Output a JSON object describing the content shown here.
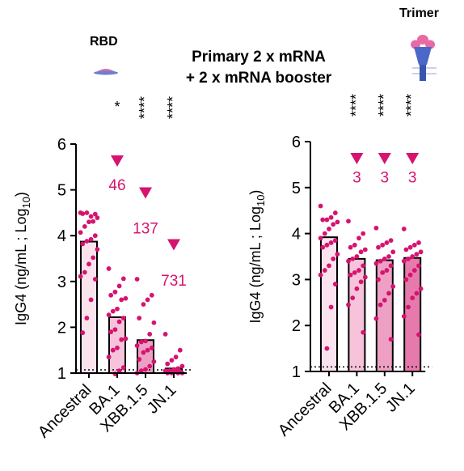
{
  "title_line1": "Primary 2 x mRNA",
  "title_line2": "+ 2 x mRNA booster",
  "icons": {
    "left": {
      "label": "RBD",
      "name": "rbd-icon"
    },
    "right": {
      "label": "Trimer",
      "name": "trimer-icon"
    }
  },
  "colors": {
    "dots": "#d6136f",
    "fills": [
      "#fbe3ee",
      "#f6c3da",
      "#eea0c4",
      "#e67aac"
    ]
  },
  "chart_data": [
    {
      "type": "bar",
      "ylabel_main": "IgG4 (ng/mL ; Log",
      "ylabel_sub": "10",
      "ylabel_close": ")",
      "ylim": [
        1,
        6
      ],
      "yticks": [
        "1",
        "2",
        "3",
        "4",
        "5",
        "6"
      ],
      "categories": [
        "Ancestral",
        "BA.1",
        "XBB.1.5",
        "JN.1"
      ],
      "values": [
        3.87,
        2.22,
        1.72,
        1.1
      ],
      "points": [
        [
          4.5,
          4.47,
          4.42,
          4.5,
          4.48,
          4.39,
          4.31,
          4.3,
          4.2,
          4.07,
          4.0,
          3.92,
          3.88,
          3.82,
          3.7,
          3.52,
          3.38,
          3.2,
          3.11,
          3.05,
          2.6,
          2.2,
          1.88
        ],
        [
          3.28,
          3.06,
          2.9,
          2.77,
          2.7,
          2.63,
          2.6,
          2.4,
          2.35,
          2.27,
          2.2,
          2.12,
          1.95,
          1.9,
          1.75,
          1.73,
          1.55,
          1.5,
          1.35,
          1.12,
          1.05,
          0.98
        ],
        [
          3.05,
          2.7,
          2.6,
          2.5,
          2.2,
          2.1,
          1.85,
          1.7,
          1.68,
          1.6,
          1.55,
          1.5,
          1.45,
          1.3,
          1.25,
          1.15,
          1.08,
          1.05,
          1.0
        ],
        [
          1.85,
          1.5,
          1.35,
          1.28,
          1.2,
          1.15,
          1.1,
          1.08,
          1.05,
          1.05,
          1.03,
          1.03,
          1.0,
          1.0,
          1.0,
          1.0
        ]
      ],
      "significance": [
        "",
        "*",
        "****",
        "****"
      ],
      "fold_changes": [
        "",
        "46",
        "137",
        "731"
      ],
      "fold_marker_y": [
        null,
        5.63,
        4.93,
        3.8
      ],
      "fold_label_y": [
        null,
        5.12,
        4.17,
        3.03
      ],
      "lod": 1.07
    },
    {
      "type": "bar",
      "ylabel_main": "IgG4 (ng/mL ; Log",
      "ylabel_sub": "10",
      "ylabel_close": ")",
      "ylim": [
        1,
        6
      ],
      "yticks": [
        "1",
        "2",
        "3",
        "4",
        "5",
        "6"
      ],
      "categories": [
        "Ancestral",
        "BA.1",
        "XBB.1.5",
        "JN.1"
      ],
      "values": [
        3.92,
        3.45,
        3.42,
        3.47
      ],
      "points": [
        [
          4.6,
          4.45,
          4.35,
          4.3,
          4.3,
          4.25,
          4.2,
          4.1,
          4.0,
          3.9,
          3.85,
          3.8,
          3.75,
          3.7,
          3.55,
          3.45,
          3.3,
          3.2,
          3.1,
          2.9,
          2.4,
          1.5
        ],
        [
          4.27,
          4.0,
          3.9,
          3.75,
          3.7,
          3.65,
          3.6,
          3.5,
          3.45,
          3.4,
          3.3,
          3.2,
          3.15,
          3.1,
          3.05,
          2.95,
          2.8,
          2.6,
          2.45,
          1.85
        ],
        [
          4.12,
          3.85,
          3.8,
          3.75,
          3.7,
          3.6,
          3.5,
          3.45,
          3.4,
          3.35,
          3.3,
          3.2,
          3.15,
          3.0,
          2.85,
          2.7,
          2.55,
          2.45,
          2.15,
          1.7
        ],
        [
          4.1,
          3.8,
          3.75,
          3.7,
          3.65,
          3.6,
          3.55,
          3.5,
          3.45,
          3.4,
          3.3,
          3.2,
          3.1,
          3.0,
          2.8,
          2.7,
          2.6,
          2.4,
          2.2,
          1.8
        ]
      ],
      "significance": [
        "",
        "****",
        "****",
        "****"
      ],
      "fold_changes": [
        "",
        "3",
        "3",
        "3"
      ],
      "fold_marker_y": [
        null,
        5.63,
        5.63,
        5.63
      ],
      "fold_label_y": [
        null,
        5.23,
        5.23,
        5.23
      ],
      "lod": 1.1
    }
  ]
}
